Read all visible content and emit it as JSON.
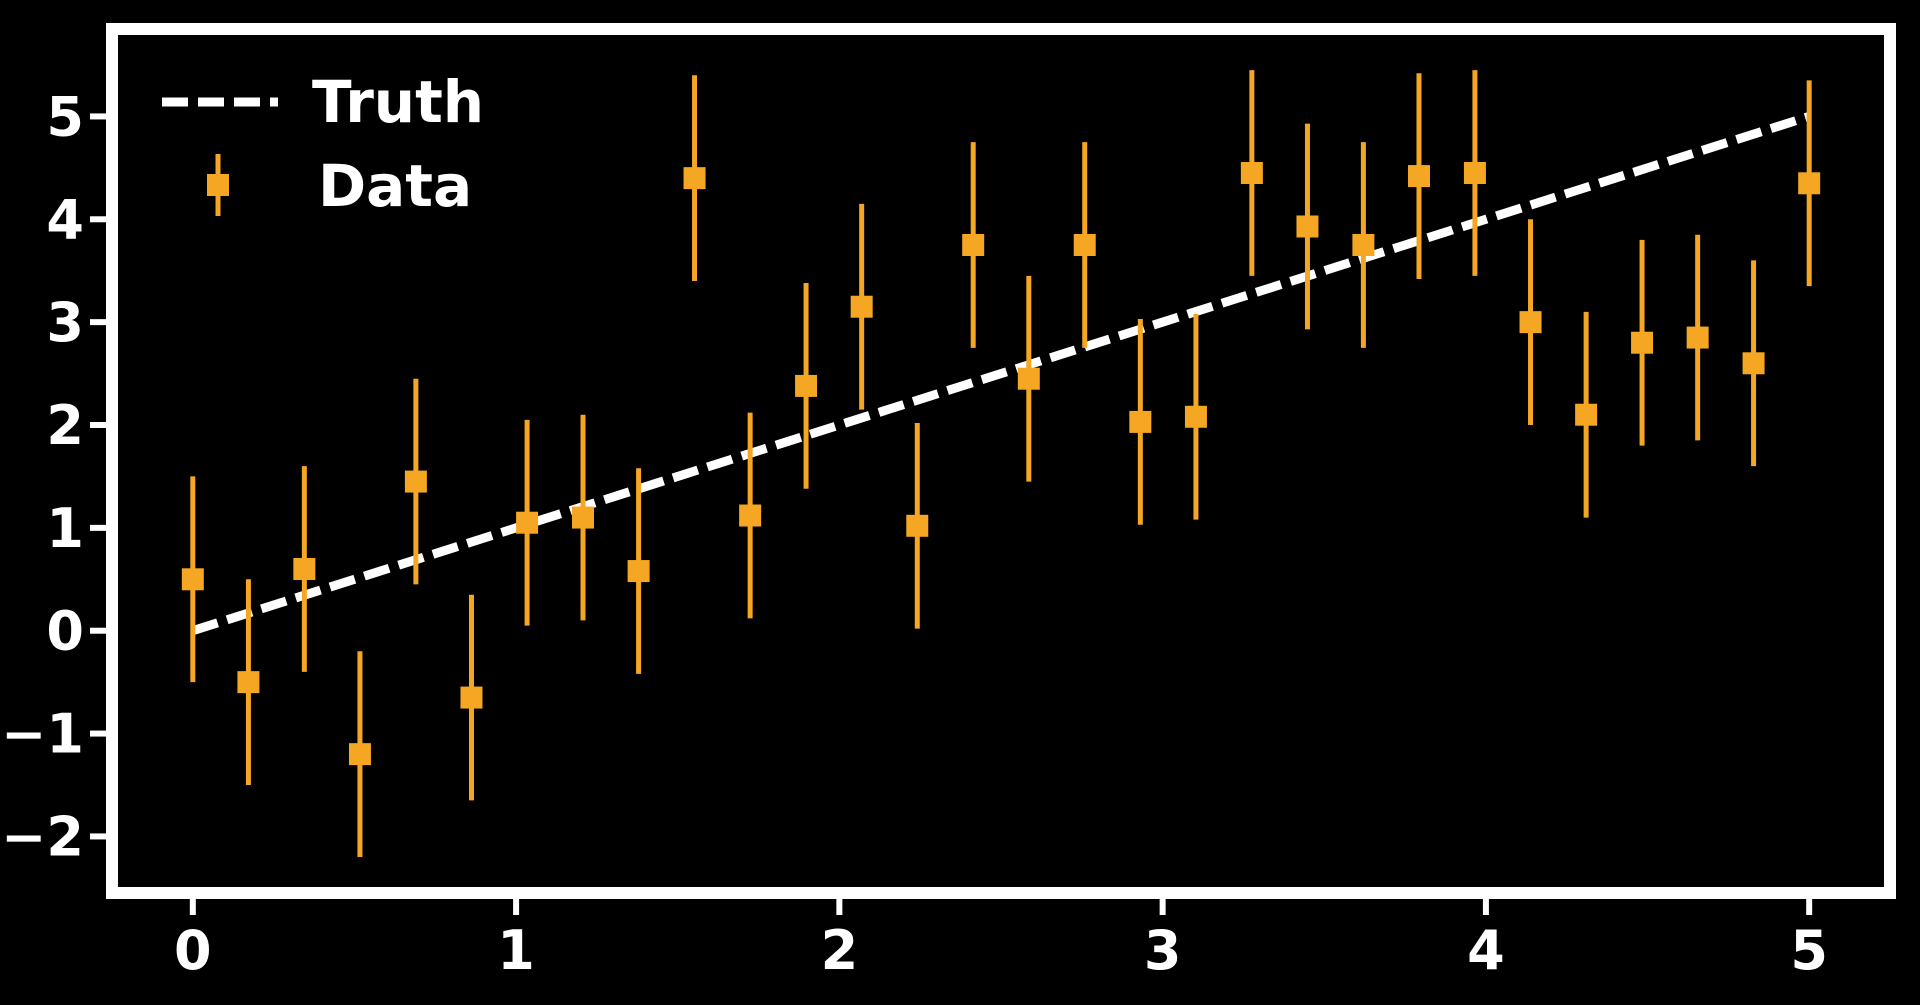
{
  "chart_data": {
    "type": "scatter",
    "title": "",
    "xlabel": "",
    "ylabel": "",
    "xlim": [
      -0.25,
      5.25
    ],
    "ylim": [
      -2.55,
      5.85
    ],
    "grid": false,
    "legend_placement": "top-left",
    "x_ticks": [
      0,
      1,
      2,
      3,
      4,
      5
    ],
    "x_tick_labels": [
      "0",
      "1",
      "2",
      "3",
      "4",
      "5"
    ],
    "y_ticks": [
      -2,
      -1,
      0,
      1,
      2,
      3,
      4,
      5
    ],
    "y_tick_labels": [
      "−2",
      "−1",
      "0",
      "1",
      "2",
      "3",
      "4",
      "5"
    ],
    "series": [
      {
        "name": "Truth",
        "kind": "line",
        "style": "dashed",
        "color": "#ffffff",
        "x": [
          0,
          5
        ],
        "y": [
          0,
          5
        ]
      },
      {
        "name": "Data",
        "kind": "errorbar",
        "color": "#f5a623",
        "x": [
          0.0,
          0.172,
          0.345,
          0.517,
          0.69,
          0.862,
          1.034,
          1.207,
          1.379,
          1.552,
          1.724,
          1.897,
          2.069,
          2.241,
          2.414,
          2.586,
          2.759,
          2.931,
          3.103,
          3.276,
          3.448,
          3.621,
          3.793,
          3.966,
          4.138,
          4.31,
          4.483,
          4.655,
          4.828,
          5.0
        ],
        "y": [
          0.5,
          -0.5,
          0.6,
          -1.2,
          1.45,
          -0.65,
          1.05,
          1.1,
          0.58,
          4.4,
          1.12,
          2.38,
          3.15,
          1.02,
          3.75,
          2.45,
          3.75,
          2.03,
          2.08,
          4.45,
          3.93,
          3.75,
          4.42,
          4.45,
          3.0,
          2.1,
          2.8,
          2.85,
          2.6,
          4.35
        ],
        "yerr": [
          1.0,
          1.0,
          1.0,
          1.0,
          1.0,
          1.0,
          1.0,
          1.0,
          1.0,
          1.0,
          1.0,
          1.0,
          1.0,
          1.0,
          1.0,
          1.0,
          1.0,
          1.0,
          1.0,
          1.0,
          1.0,
          1.0,
          1.0,
          1.0,
          1.0,
          1.0,
          1.0,
          1.0,
          1.0,
          1.0
        ]
      }
    ]
  },
  "colors": {
    "background": "#000000",
    "axes": "#ffffff",
    "truth_line": "#ffffff",
    "data_points": "#f5a623"
  }
}
